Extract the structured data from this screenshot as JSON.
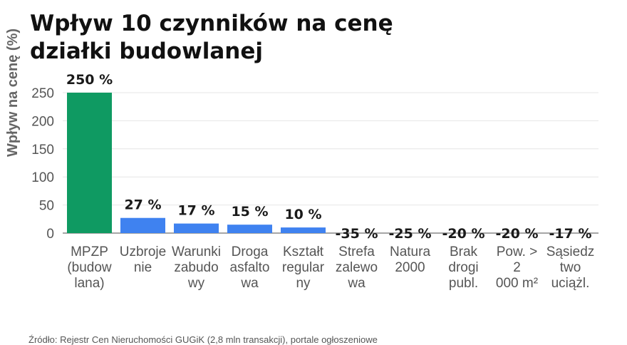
{
  "chart_data": {
    "type": "bar",
    "title": "Wpływ 10 czynników na cenę działki budowlanej",
    "xlabel": "",
    "ylabel": "Wpływ na cenę (%)",
    "ylim": [
      -40,
      250
    ],
    "yticks": [
      0,
      50,
      100,
      150,
      200,
      250
    ],
    "grid": true,
    "legend": "none",
    "categories": [
      [
        "MPZP",
        "(budow",
        "lana)"
      ],
      [
        "Uzbroje",
        "nie"
      ],
      [
        "Warunki",
        "zabudo",
        "wy"
      ],
      [
        "Droga",
        "asfalto",
        "wa"
      ],
      [
        "Kształt",
        "regular",
        "ny"
      ],
      [
        "Strefa",
        "zalewo",
        "wa"
      ],
      [
        "Natura",
        "2000"
      ],
      [
        "Brak",
        "drogi",
        "publ."
      ],
      [
        "Pow. >",
        "2",
        "000 m²"
      ],
      [
        "Sąsiedz",
        "two",
        "uciążl."
      ]
    ],
    "values": [
      250,
      27,
      17,
      15,
      10,
      -35,
      -25,
      -20,
      -20,
      -17
    ],
    "data_labels": [
      "250 %",
      "27 %",
      "17 %",
      "15 %",
      "10 %",
      "-35 %",
      "-25 %",
      "-20 %",
      "-20 %",
      "-17 %"
    ],
    "colors": {
      "highlight": "#0f9a62",
      "positive": "#3f82f0",
      "negative": "#e8443a",
      "grid": "#e6e6e6",
      "axis": "#555555"
    }
  },
  "source": "Źródło: Rejestr Cen Nieruchomości GUGiK (2,8 mln transakcji), portale ogłoszeniowe"
}
